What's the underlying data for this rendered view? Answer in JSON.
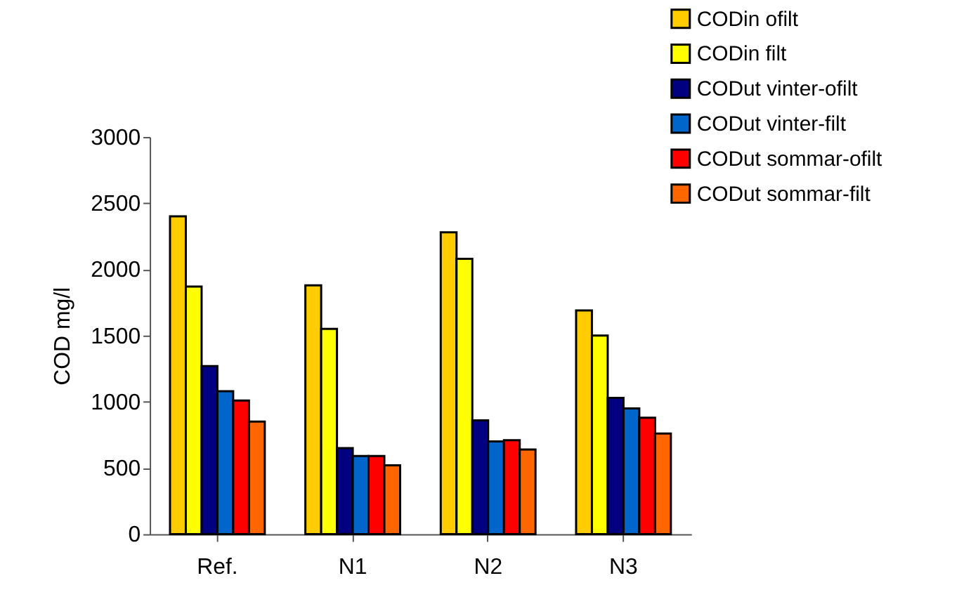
{
  "chart_data": {
    "type": "bar",
    "ylabel": "COD mg/l",
    "categories": [
      "Ref.",
      "N1",
      "N2",
      "N3"
    ],
    "series": [
      {
        "name": "CODin ofilt",
        "color": "#ffcc00",
        "values": [
          2400,
          1880,
          2280,
          1690
        ]
      },
      {
        "name": "CODin filt",
        "color": "#ffff00",
        "values": [
          1870,
          1550,
          2080,
          1500
        ]
      },
      {
        "name": "CODut vinter-ofilt",
        "color": "#000080",
        "values": [
          1270,
          650,
          860,
          1030
        ]
      },
      {
        "name": "CODut vinter-filt",
        "color": "#0066cc",
        "values": [
          1080,
          590,
          700,
          950
        ]
      },
      {
        "name": "CODut sommar-ofilt",
        "color": "#ff0000",
        "values": [
          1010,
          590,
          710,
          880
        ]
      },
      {
        "name": "CODut sommar-filt",
        "color": "#ff6600",
        "values": [
          850,
          520,
          640,
          760
        ]
      }
    ],
    "ylim": [
      0,
      3000
    ],
    "yticks": [
      0,
      500,
      1000,
      1500,
      2000,
      2500,
      3000
    ],
    "grid": false,
    "legend": "top right"
  }
}
